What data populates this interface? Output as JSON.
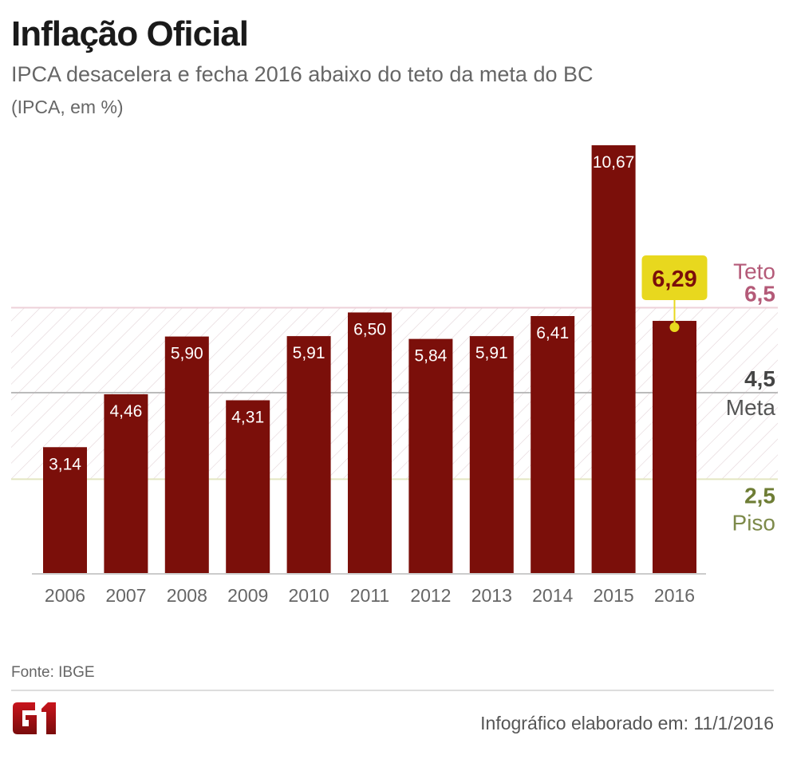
{
  "title": "Inflação Oficial",
  "subtitle": "IPCA desacelera e fecha 2016 abaixo do teto da meta do BC",
  "unit_note": "(IPCA, em %)",
  "source": "Fonte: IBGE",
  "credit": "Infográfico elaborado em: 11/1/2016",
  "logo_text": "G1",
  "colors": {
    "bar": "#7b0f0a",
    "teto": "#b45a78",
    "meta": "#444444",
    "piso": "#6e7d35",
    "highlight": "#e8d81e"
  },
  "chart_data": {
    "type": "bar",
    "categories": [
      "2006",
      "2007",
      "2008",
      "2009",
      "2010",
      "2011",
      "2012",
      "2013",
      "2014",
      "2015",
      "2016"
    ],
    "values": [
      3.14,
      4.46,
      5.9,
      4.31,
      5.91,
      6.5,
      5.84,
      5.91,
      6.41,
      10.67,
      6.29
    ],
    "data_labels": [
      "3,14",
      "4,46",
      "5,90",
      "4,31",
      "5,91",
      "6,50",
      "5,84",
      "5,91",
      "6,41",
      "10,67",
      "6,29"
    ],
    "highlight": {
      "category": "2016",
      "label": "6,29"
    },
    "reference_lines": [
      {
        "name": "Teto",
        "value": 6.5,
        "label": "6,5"
      },
      {
        "name": "Meta",
        "value": 4.5,
        "label": "4,5"
      },
      {
        "name": "Piso",
        "value": 2.5,
        "label": "2,5"
      }
    ],
    "ylim": [
      0,
      10.67
    ],
    "grid": false
  }
}
